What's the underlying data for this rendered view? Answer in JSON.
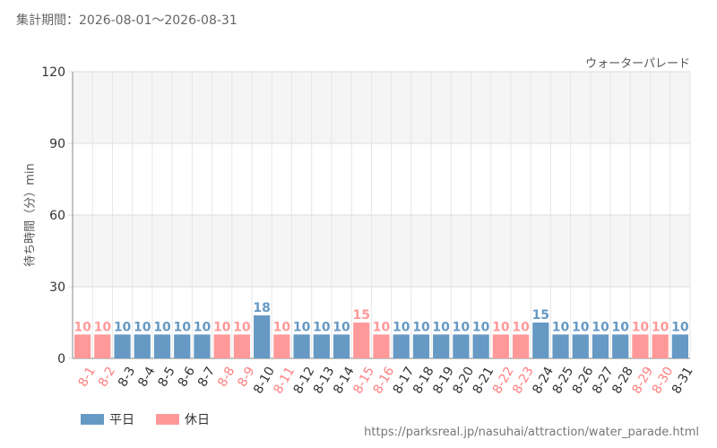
{
  "header": {
    "period_label": "集計期間：2026-08-01～2026-08-31"
  },
  "colors": {
    "weekday": "#6699c4",
    "holiday": "#ff9999",
    "weekday_text": "#333333",
    "holiday_text": "#ff7f7f"
  },
  "legend": {
    "weekday_label": "平日",
    "holiday_label": "休日"
  },
  "source_url": "https://parksreal.jp/nasuhai/attraction/water_parade.html",
  "chart_data": {
    "type": "bar",
    "title": "ウォーターパレード",
    "ylabel": "待ち時間（分）min",
    "ylim": [
      0,
      120
    ],
    "yticks": [
      0,
      30,
      60,
      90,
      120
    ],
    "grid": true,
    "legend_position": "bottom-left",
    "categories": [
      "8-1",
      "8-2",
      "8-3",
      "8-4",
      "8-5",
      "8-6",
      "8-7",
      "8-8",
      "8-9",
      "8-10",
      "8-11",
      "8-12",
      "8-13",
      "8-14",
      "8-15",
      "8-16",
      "8-17",
      "8-18",
      "8-19",
      "8-20",
      "8-21",
      "8-22",
      "8-23",
      "8-24",
      "8-25",
      "8-26",
      "8-27",
      "8-28",
      "8-29",
      "8-30",
      "8-31"
    ],
    "values": [
      10,
      10,
      10,
      10,
      10,
      10,
      10,
      10,
      10,
      18,
      10,
      10,
      10,
      10,
      15,
      10,
      10,
      10,
      10,
      10,
      10,
      10,
      10,
      15,
      10,
      10,
      10,
      10,
      10,
      10,
      10
    ],
    "day_type": [
      "休日",
      "休日",
      "平日",
      "平日",
      "平日",
      "平日",
      "平日",
      "休日",
      "休日",
      "平日",
      "休日",
      "平日",
      "平日",
      "平日",
      "休日",
      "休日",
      "平日",
      "平日",
      "平日",
      "平日",
      "平日",
      "休日",
      "休日",
      "平日",
      "平日",
      "平日",
      "平日",
      "平日",
      "休日",
      "休日",
      "平日"
    ]
  }
}
